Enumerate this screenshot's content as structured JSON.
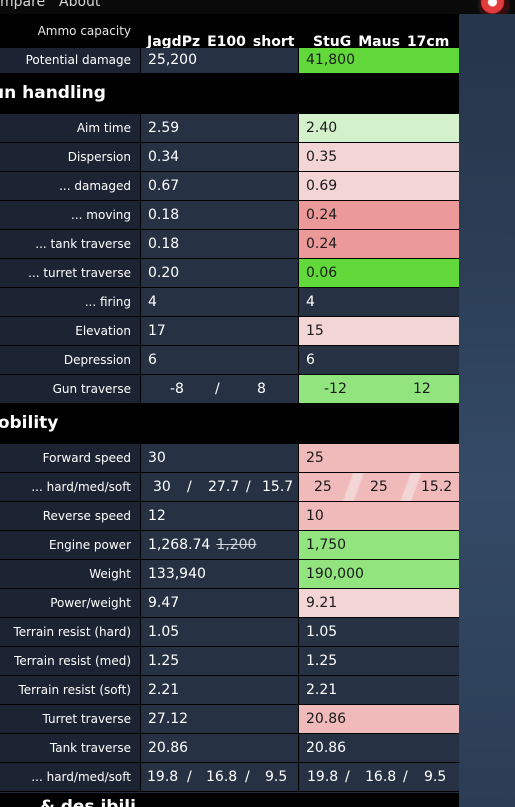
{
  "nav": {
    "compare": "mpare",
    "about": "About"
  },
  "header": {
    "label": "Ammo capacity",
    "vehicle1": "JagdPz_E100_short",
    "vehicle2": "StuG_Maus_17cm"
  },
  "colors": {
    "bright_green": "#62d93b",
    "green": "#92e47e",
    "light_green": "#d3f1cb",
    "light_pink": "#f3d5d5",
    "pink": "#f0baba",
    "red_pink": "#ec9999",
    "neutral": "#263244"
  },
  "rows_top": [
    {
      "label": "Potential damage",
      "v1": "25,200",
      "v2": "41,800"
    }
  ],
  "gun_handling": {
    "title": "un handling",
    "rows": [
      {
        "label": "Aim time",
        "v1": "2.59",
        "v2": "2.40"
      },
      {
        "label": "Dispersion",
        "v1": "0.34",
        "v2": "0.35"
      },
      {
        "label": "... damaged",
        "v1": "0.67",
        "v2": "0.69"
      },
      {
        "label": "... moving",
        "v1": "0.18",
        "v2": "0.24"
      },
      {
        "label": "... tank traverse",
        "v1": "0.18",
        "v2": "0.24"
      },
      {
        "label": "... turret traverse",
        "v1": "0.20",
        "v2": "0.06"
      },
      {
        "label": "... firing",
        "v1": "4",
        "v2": "4"
      },
      {
        "label": "Elevation",
        "v1": "17",
        "v2": "15"
      },
      {
        "label": "Depression",
        "v1": "6",
        "v2": "6"
      }
    ],
    "gun_traverse": {
      "label": "Gun traverse",
      "v1a": "-8",
      "sep": "/",
      "v1b": "8",
      "v2a": "-12",
      "v2b": "12"
    }
  },
  "mobility": {
    "title": "lobility",
    "forward_speed": {
      "label": "Forward speed",
      "v1": "30",
      "v2": "25"
    },
    "hms_speed": {
      "label": "... hard/med/soft",
      "v1a": "30",
      "v1b": "27.7",
      "v1c": "15.7",
      "sep": "/",
      "v2a": "25",
      "v2b": "25",
      "v2c": "15.2"
    },
    "reverse_speed": {
      "label": "Reverse speed",
      "v1": "12",
      "v2": "10"
    },
    "engine_power": {
      "label": "Engine power",
      "v1": "1,268.74",
      "v1_old": "1,200",
      "v2": "1,750"
    },
    "rows": [
      {
        "label": "Weight",
        "v1": "133,940",
        "v2": "190,000"
      },
      {
        "label": "Power/weight",
        "v1": "9.47",
        "v2": "9.21"
      },
      {
        "label": "Terrain resist (hard)",
        "v1": "1.05",
        "v2": "1.05"
      },
      {
        "label": "Terrain resist (med)",
        "v1": "1.25",
        "v2": "1.25"
      },
      {
        "label": "Terrain resist (soft)",
        "v1": "2.21",
        "v2": "2.21"
      },
      {
        "label": "Turret traverse",
        "v1": "27.12",
        "v2": "20.86"
      },
      {
        "label": "Tank traverse",
        "v1": "20.86",
        "v2": "20.86"
      }
    ],
    "hms_traverse": {
      "label": "... hard/med/soft",
      "v1a": "19.8",
      "v1b": "16.8",
      "v1c": "9.5",
      "sep": "/",
      "v2a": "19.8",
      "v2b": "16.8",
      "v2c": "9.5"
    }
  },
  "next_section": {
    "title": "& des ibili"
  }
}
